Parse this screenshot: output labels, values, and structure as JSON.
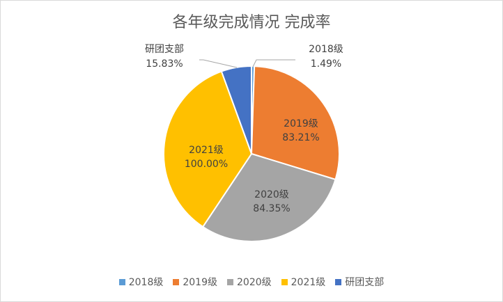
{
  "chart_data": {
    "type": "pie",
    "title": "各年级完成情况 完成率",
    "categories": [
      "2018级",
      "2019级",
      "2020级",
      "2021级",
      "研团支部"
    ],
    "values": [
      1.49,
      83.21,
      84.35,
      100.0,
      15.83
    ],
    "value_labels": [
      "1.49%",
      "83.21%",
      "84.35%",
      "100.00%",
      "15.83%"
    ],
    "colors": [
      "#5b9bd5",
      "#ed7d31",
      "#a5a5a5",
      "#ffc000",
      "#4472c4"
    ],
    "legend_position": "bottom"
  }
}
